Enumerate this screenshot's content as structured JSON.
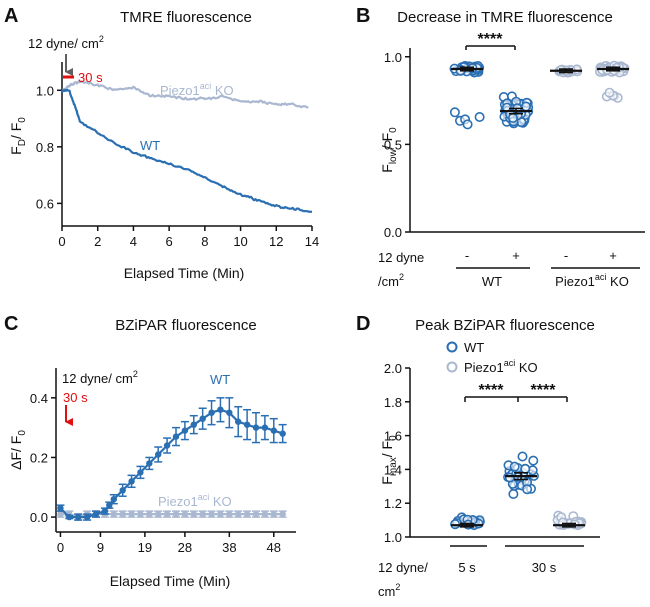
{
  "colors": {
    "wt": "#2b6fb3",
    "ko": "#a9b8d0",
    "red": "#e01010",
    "arrow_gray": "#606060"
  },
  "panels": {
    "A": {
      "letter": "A",
      "stimulus": "12 dyne/ cm",
      "stimulus_sup": "2",
      "duration": "30 s",
      "ko_label": "Piezo1",
      "ko_sup": "aci",
      "ko_tail": " KO",
      "wt_label": "WT"
    },
    "B": {
      "letter": "B",
      "stim_line1": "12 dyne",
      "stim_line2": "/cm",
      "stim_sup": "2",
      "signs": [
        "-",
        "+",
        "-",
        "+"
      ],
      "sig": "****",
      "group_wt": "WT",
      "group_ko": "Piezo1",
      "group_ko_sup": "aci",
      "group_ko_tail": " KO"
    },
    "C": {
      "letter": "C",
      "stimulus": "12 dyne/ cm",
      "stimulus_sup": "2",
      "duration": "30 s",
      "wt_label": "WT",
      "ko_label": "Piezo1",
      "ko_sup": "aci",
      "ko_tail": " KO"
    },
    "D": {
      "letter": "D",
      "legend_wt": "WT",
      "legend_ko": "Piezo1",
      "legend_ko_sup": "aci",
      "legend_ko_tail": " KO",
      "sig1": "****",
      "sig2": "****",
      "stim_line1": "12 dyne/",
      "stim_line2": "cm",
      "stim_sup": "2",
      "group1": "5 s",
      "group2": "30 s"
    }
  },
  "chart_data": [
    {
      "type": "line",
      "title": "TMRE fluorescence",
      "xlabel": "Elapsed Time (Min)",
      "ylabel_main": "F",
      "ylabel_sub1": "D",
      "ylabel_mid": "/ F",
      "ylabel_sub2": "0",
      "xlim": [
        0,
        14
      ],
      "ylim": [
        0.52,
        1.1
      ],
      "xticks": [
        0,
        2,
        4,
        6,
        8,
        10,
        12,
        14
      ],
      "yticks": [
        0.6,
        0.8,
        1.0
      ],
      "series": [
        {
          "name": "Piezo1aci KO",
          "x": [
            0,
            0.5,
            1,
            2,
            3,
            4,
            5,
            6,
            7,
            8,
            9,
            10,
            11,
            12,
            13,
            13.8
          ],
          "y": [
            1.0,
            1.02,
            1.03,
            1.02,
            1.0,
            1.01,
            0.98,
            0.98,
            0.97,
            0.97,
            0.98,
            0.96,
            0.96,
            0.95,
            0.95,
            0.94
          ]
        },
        {
          "name": "WT",
          "x": [
            0,
            0.4,
            0.8,
            1,
            2,
            3,
            4,
            5,
            6,
            7,
            8,
            9,
            10,
            11,
            12,
            13,
            14
          ],
          "y": [
            1.0,
            1.0,
            0.93,
            0.89,
            0.85,
            0.81,
            0.78,
            0.76,
            0.74,
            0.72,
            0.69,
            0.66,
            0.63,
            0.61,
            0.59,
            0.58,
            0.57
          ]
        }
      ]
    },
    {
      "type": "scatter",
      "title": "Decrease in TMRE fluorescence",
      "ylabel_main": "F",
      "ylabel_sub1": "low",
      "ylabel_mid": "/ F",
      "ylabel_sub2": "0",
      "ylim": [
        0.0,
        1.05
      ],
      "yticks": [
        0.0,
        0.5,
        1.0
      ],
      "ytick_labels": [
        "0.0",
        "0.5",
        "1.0"
      ],
      "groups": [
        {
          "name": "WT -",
          "mean": 0.93,
          "sem": 0.01,
          "n": 40
        },
        {
          "name": "WT +",
          "mean": 0.69,
          "sem": 0.015,
          "n": 60
        },
        {
          "name": "Piezo1aci KO -",
          "mean": 0.92,
          "sem": 0.01,
          "n": 15
        },
        {
          "name": "Piezo1aci KO +",
          "mean": 0.93,
          "sem": 0.01,
          "n": 35
        }
      ]
    },
    {
      "type": "line",
      "title": "BZiPAR fluorescence",
      "xlabel": "Elapsed Time (Min)",
      "ylabel_main": "ΔF/ F",
      "ylabel_sub2": "0",
      "xlim": [
        -1,
        53
      ],
      "ylim": [
        -0.05,
        0.5
      ],
      "xticks": [
        0,
        9,
        19,
        28,
        38,
        48
      ],
      "yticks": [
        0.0,
        0.2,
        0.4
      ],
      "ytick_labels": [
        "0.0",
        "0.2",
        "0.4"
      ],
      "series": [
        {
          "name": "WT",
          "x": [
            0,
            2,
            4,
            6,
            8,
            10,
            11,
            12,
            14,
            16,
            18,
            20,
            22,
            24,
            26,
            28,
            30,
            32,
            34,
            36,
            38,
            40,
            42,
            44,
            46,
            48,
            50
          ],
          "y": [
            0.03,
            0.0,
            0.0,
            0.0,
            0.01,
            0.02,
            0.04,
            0.06,
            0.09,
            0.12,
            0.15,
            0.18,
            0.21,
            0.24,
            0.27,
            0.29,
            0.31,
            0.33,
            0.35,
            0.36,
            0.35,
            0.32,
            0.31,
            0.3,
            0.3,
            0.29,
            0.28
          ],
          "err": [
            0.01,
            0.005,
            0.01,
            0.01,
            0.01,
            0.01,
            0.01,
            0.015,
            0.02,
            0.02,
            0.02,
            0.02,
            0.025,
            0.025,
            0.03,
            0.03,
            0.03,
            0.035,
            0.04,
            0.04,
            0.05,
            0.05,
            0.05,
            0.05,
            0.04,
            0.04,
            0.03
          ]
        },
        {
          "name": "Piezo1aci KO",
          "x": [
            0,
            2,
            4,
            6,
            8,
            10,
            12,
            14,
            16,
            18,
            20,
            22,
            24,
            26,
            28,
            30,
            32,
            34,
            36,
            38,
            40,
            42,
            44,
            46,
            48,
            50
          ],
          "y": [
            0.01,
            0.01,
            0.0,
            0.01,
            0.01,
            0.01,
            0.01,
            0.01,
            0.01,
            0.01,
            0.01,
            0.01,
            0.01,
            0.01,
            0.01,
            0.01,
            0.01,
            0.01,
            0.01,
            0.01,
            0.01,
            0.01,
            0.01,
            0.01,
            0.01,
            0.01
          ],
          "err": [
            0.01,
            0.01,
            0.01,
            0.01,
            0.01,
            0.01,
            0.01,
            0.01,
            0.01,
            0.01,
            0.01,
            0.01,
            0.01,
            0.01,
            0.01,
            0.01,
            0.01,
            0.01,
            0.01,
            0.01,
            0.01,
            0.01,
            0.01,
            0.01,
            0.01,
            0.01
          ]
        }
      ]
    },
    {
      "type": "scatter",
      "title": "Peak BZiPAR fluorescence",
      "ylabel_main": "F",
      "ylabel_sub1": "max",
      "ylabel_mid": "/ F",
      "ylabel_sub2": "0",
      "ylim": [
        1.0,
        2.0
      ],
      "yticks": [
        1.0,
        1.2,
        1.4,
        1.6,
        1.8,
        2.0
      ],
      "ytick_labels": [
        "1.0",
        "1.2",
        "1.4",
        "1.6",
        "1.8",
        "2.0"
      ],
      "groups": [
        {
          "name": "WT 5 s",
          "mean": 1.07,
          "sem": 0.01,
          "n": 22
        },
        {
          "name": "WT 30 s",
          "mean": 1.36,
          "sem": 0.02,
          "n": 32
        },
        {
          "name": "Piezo1aci KO 30 s",
          "mean": 1.07,
          "sem": 0.01,
          "n": 25
        }
      ]
    }
  ]
}
